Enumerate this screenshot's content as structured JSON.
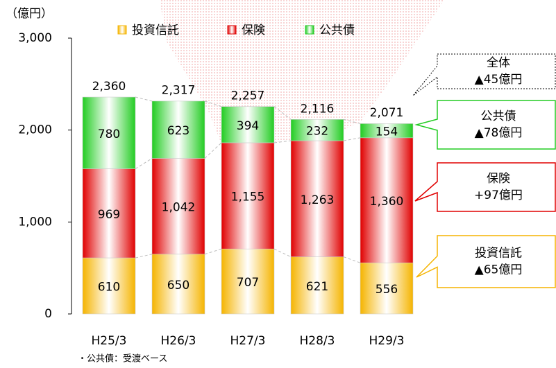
{
  "chart_data": {
    "type": "bar",
    "stacked": true,
    "y_axis_label": "（億円）",
    "categories": [
      "H25/3",
      "H26/3",
      "H27/3",
      "H28/3",
      "H29/3"
    ],
    "series": [
      {
        "name": "投資信託",
        "color": "#f5b400",
        "values": [
          610,
          650,
          707,
          621,
          556
        ]
      },
      {
        "name": "保険",
        "color": "#e00000",
        "values": [
          969,
          1042,
          1155,
          1263,
          1360
        ],
        "value_labels": [
          "969",
          "1,042",
          "1,155",
          "1,263",
          "1,360"
        ]
      },
      {
        "name": "公共債",
        "color": "#22cc22",
        "values": [
          780,
          623,
          394,
          232,
          154
        ]
      }
    ],
    "totals": [
      2360,
      2317,
      2257,
      2116,
      2071
    ],
    "total_labels": [
      "2,360",
      "2,317",
      "2,257",
      "2,116",
      "2,071"
    ],
    "ylim": [
      0,
      3000
    ],
    "yticks": [
      0,
      {
        "value": 1000,
        "label": "1,000"
      },
      {
        "value": 2000,
        "label": "2,000"
      },
      {
        "value": 3000,
        "label": "3,000"
      }
    ],
    "annotations": [
      {
        "title": "全体",
        "change": "▲45億円",
        "color": "#000000"
      },
      {
        "title": "公共債",
        "change": "▲78億円",
        "color": "#22cc22"
      },
      {
        "title": "保険",
        "change": "+97億円",
        "color": "#e00000"
      },
      {
        "title": "投資信託",
        "change": "▲65億円",
        "color": "#f5b400"
      }
    ],
    "footnote": "・公共債：受渡ベース"
  }
}
